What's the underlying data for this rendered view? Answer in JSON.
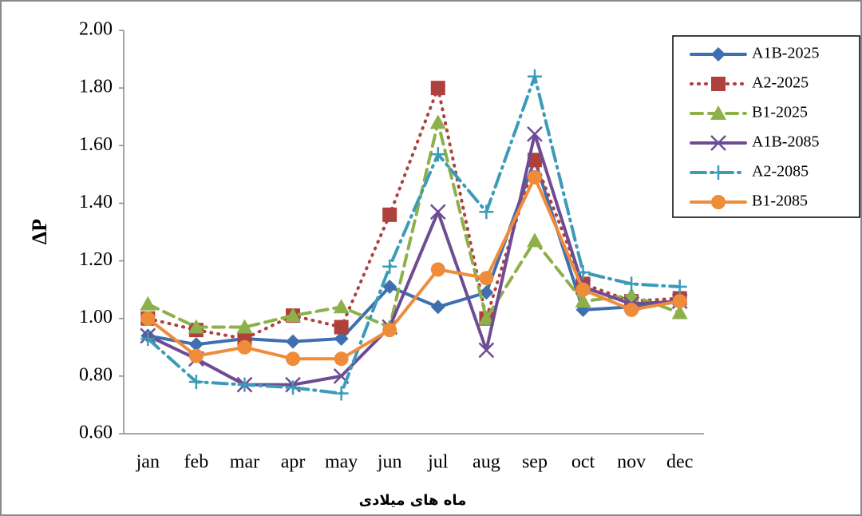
{
  "chart_data": {
    "type": "line",
    "y_label": "ΔP",
    "x_label": "ماه های میلادی",
    "categories": [
      "jan",
      "feb",
      "mar",
      "apr",
      "may",
      "jun",
      "jul",
      "aug",
      "sep",
      "oct",
      "nov",
      "dec"
    ],
    "series": [
      {
        "name": "A1B-2025",
        "color": "#3f6fb0",
        "marker": "diamond",
        "line_style": "solid",
        "values": [
          0.94,
          0.91,
          0.93,
          0.92,
          0.93,
          1.11,
          1.04,
          1.09,
          1.55,
          1.03,
          1.04,
          1.06
        ]
      },
      {
        "name": "A2-2025",
        "color": "#b0403c",
        "marker": "square",
        "line_style": "dotted",
        "values": [
          1.0,
          0.96,
          0.93,
          1.01,
          0.97,
          1.36,
          1.8,
          1.0,
          1.55,
          1.12,
          1.06,
          1.07
        ]
      },
      {
        "name": "B1-2025",
        "color": "#8db04a",
        "marker": "triangle",
        "line_style": "dashed",
        "values": [
          1.05,
          0.97,
          0.97,
          1.01,
          1.04,
          0.97,
          1.68,
          1.0,
          1.27,
          1.06,
          1.08,
          1.02
        ]
      },
      {
        "name": "A1B-2085",
        "color": "#6e4c94",
        "marker": "x",
        "line_style": "solid",
        "values": [
          0.94,
          0.86,
          0.77,
          0.77,
          0.8,
          0.97,
          1.37,
          0.89,
          1.64,
          1.11,
          1.05,
          1.06
        ]
      },
      {
        "name": "A2-2085",
        "color": "#3c9bb8",
        "marker": "plus",
        "line_style": "dashdot",
        "values": [
          0.93,
          0.78,
          0.77,
          0.76,
          0.74,
          1.18,
          1.57,
          1.37,
          1.84,
          1.16,
          1.12,
          1.11
        ]
      },
      {
        "name": "B1-2085",
        "color": "#ef8c3a",
        "marker": "circle",
        "line_style": "solid",
        "values": [
          1.0,
          0.87,
          0.9,
          0.86,
          0.86,
          0.96,
          1.17,
          1.14,
          1.49,
          1.1,
          1.03,
          1.06
        ]
      }
    ],
    "ylim": [
      0.6,
      2.0
    ],
    "yticks": [
      {
        "value": 0.6,
        "label": "0.60"
      },
      {
        "value": 0.8,
        "label": "0.80"
      },
      {
        "value": 1.0,
        "label": "1.00"
      },
      {
        "value": 1.2,
        "label": "1.20"
      },
      {
        "value": 1.4,
        "label": "1.40"
      },
      {
        "value": 1.6,
        "label": "1.60"
      },
      {
        "value": 1.8,
        "label": "1.80"
      },
      {
        "value": 2.0,
        "label": "2.00"
      }
    ],
    "grid": false,
    "legend": "top-right"
  }
}
